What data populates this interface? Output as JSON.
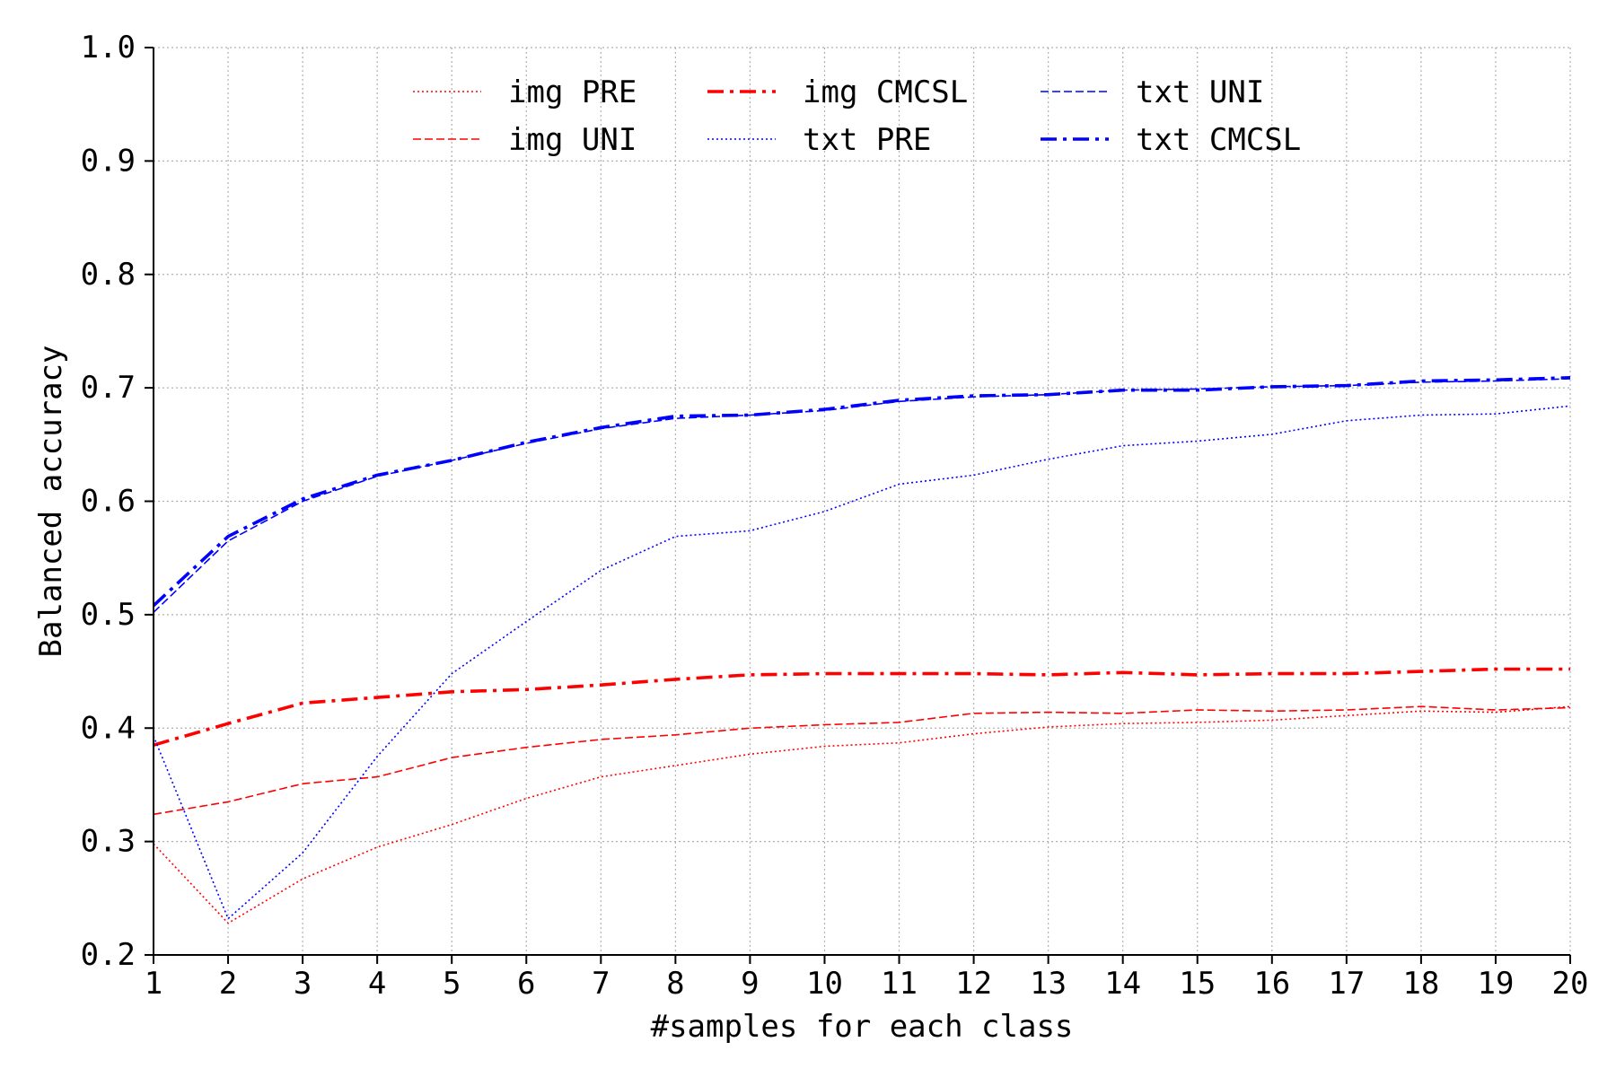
{
  "chart_data": {
    "type": "line",
    "title": "",
    "xlabel": "#samples for each class",
    "ylabel": "Balanced accuracy",
    "x": [
      1,
      2,
      3,
      4,
      5,
      6,
      7,
      8,
      9,
      10,
      11,
      12,
      13,
      14,
      15,
      16,
      17,
      18,
      19,
      20
    ],
    "xlim": [
      1,
      20
    ],
    "ylim": [
      0.2,
      1.0
    ],
    "xticks": [
      "1",
      "2",
      "3",
      "4",
      "5",
      "6",
      "7",
      "8",
      "9",
      "10",
      "11",
      "12",
      "13",
      "14",
      "15",
      "16",
      "17",
      "18",
      "19",
      "20"
    ],
    "yticks": [
      "0.2",
      "0.3",
      "0.4",
      "0.5",
      "0.6",
      "0.7",
      "0.8",
      "0.9",
      "1.0"
    ],
    "ytick_values": [
      0.2,
      0.3,
      0.4,
      0.5,
      0.6,
      0.7,
      0.8,
      0.9,
      1.0
    ],
    "grid": true,
    "legend_position": "top",
    "series": [
      {
        "name": "img PRE",
        "color": "#ff0000",
        "style": "dotted",
        "weight": "thin",
        "values": [
          0.298,
          0.228,
          0.267,
          0.295,
          0.315,
          0.338,
          0.357,
          0.367,
          0.377,
          0.384,
          0.387,
          0.395,
          0.401,
          0.404,
          0.405,
          0.407,
          0.411,
          0.415,
          0.414,
          0.419
        ]
      },
      {
        "name": "img UNI",
        "color": "#ff0000",
        "style": "dashed",
        "weight": "thin",
        "values": [
          0.324,
          0.335,
          0.351,
          0.357,
          0.374,
          0.383,
          0.39,
          0.394,
          0.4,
          0.403,
          0.405,
          0.413,
          0.414,
          0.413,
          0.416,
          0.415,
          0.416,
          0.419,
          0.416,
          0.418
        ]
      },
      {
        "name": "img CMCSL",
        "color": "#ff0000",
        "style": "dashdot",
        "weight": "thick",
        "values": [
          0.385,
          0.404,
          0.422,
          0.427,
          0.432,
          0.434,
          0.438,
          0.443,
          0.447,
          0.448,
          0.448,
          0.448,
          0.447,
          0.449,
          0.447,
          0.448,
          0.448,
          0.45,
          0.452,
          0.452
        ]
      },
      {
        "name": "txt PRE",
        "color": "#0000ff",
        "style": "dotted",
        "weight": "thin",
        "values": [
          0.393,
          0.232,
          0.29,
          0.375,
          0.448,
          0.494,
          0.539,
          0.569,
          0.574,
          0.591,
          0.615,
          0.623,
          0.637,
          0.649,
          0.653,
          0.659,
          0.671,
          0.676,
          0.677,
          0.684
        ]
      },
      {
        "name": "txt UNI",
        "color": "#0000ff",
        "style": "dashed",
        "weight": "thin",
        "values": [
          0.502,
          0.565,
          0.6,
          0.622,
          0.636,
          0.651,
          0.664,
          0.673,
          0.676,
          0.68,
          0.688,
          0.692,
          0.694,
          0.698,
          0.699,
          0.701,
          0.702,
          0.705,
          0.706,
          0.708
        ]
      },
      {
        "name": "txt CMCSL",
        "color": "#0000ff",
        "style": "dashdot",
        "weight": "thick",
        "values": [
          0.508,
          0.569,
          0.602,
          0.623,
          0.636,
          0.652,
          0.665,
          0.675,
          0.676,
          0.681,
          0.689,
          0.693,
          0.694,
          0.698,
          0.698,
          0.701,
          0.702,
          0.706,
          0.707,
          0.709
        ]
      }
    ]
  }
}
